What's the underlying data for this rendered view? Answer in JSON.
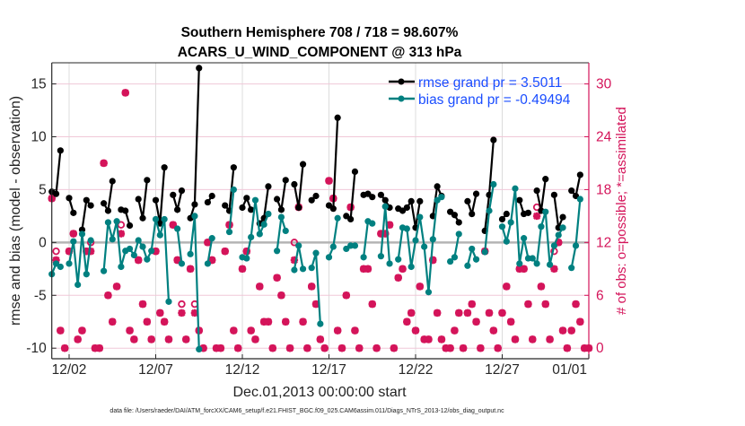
{
  "chart_data": {
    "type": "line",
    "title": [
      "Southern Hemisphere 708 / 718 = 98.607%",
      "ACARS_U_WIND_COMPONENT @ 313 hPa"
    ],
    "xlabel": "Dec.01,2013 00:00:00 start",
    "ylabel": "rmse and bias (model - observation)",
    "ylabel_right": "# of obs: o=possible; *=assimilated",
    "footer": "data file: /Users/raeder/DAI/ATM_forcXX/CAM6_setup/f.e21.FHIST_BGC.f09_025.CAM6assim.011/Diags_NTrS_2013-12/obs_diag_output.nc",
    "x_unit": "days since Dec.01,2013 00:00:00, 6-hourly",
    "x_step_days": 0.25,
    "xlim": [
      0,
      31
    ],
    "ylim": [
      -11,
      17
    ],
    "ylim_right": [
      -1.2,
      32.4
    ],
    "x_ticks": [
      {
        "value": 1,
        "label": "12/02"
      },
      {
        "value": 6,
        "label": "12/07"
      },
      {
        "value": 11,
        "label": "12/12"
      },
      {
        "value": 16,
        "label": "12/17"
      },
      {
        "value": 21,
        "label": "12/22"
      },
      {
        "value": 26,
        "label": "12/27"
      },
      {
        "value": 31,
        "label": "01/01"
      }
    ],
    "y_ticks": [
      -10,
      -5,
      0,
      5,
      10,
      15
    ],
    "y_ticks_right": [
      0,
      6,
      12,
      18,
      24,
      30
    ],
    "grid": true,
    "legend_position": "top-right",
    "colors": {
      "rmse": "#000000",
      "bias": "#008080",
      "obs": "#d4145a",
      "legend_text": "#1a4dff",
      "zero_line": "#b4b4b4"
    },
    "series": [
      {
        "name": "rmse grand pr = 3.5011",
        "key": "rmse",
        "values": [
          4.8,
          4.6,
          8.7,
          null,
          4.2,
          2.8,
          null,
          1.2,
          4.0,
          3.5,
          null,
          null,
          3.7,
          3.0,
          5.8,
          null,
          3.1,
          3.0,
          1.6,
          null,
          4.1,
          2.3,
          5.9,
          null,
          4.0,
          1.8,
          7.1,
          null,
          4.5,
          3.1,
          4.9,
          null,
          2.3,
          3.6,
          16.5,
          null,
          3.8,
          4.4,
          null,
          null,
          3.5,
          3.0,
          7.1,
          null,
          3.3,
          4.2,
          3.1,
          null,
          1.8,
          2.3,
          5.3,
          null,
          4.1,
          3.1,
          5.9,
          null,
          5.5,
          3.3,
          7.4,
          null,
          4.0,
          4.4,
          null,
          null,
          3.5,
          3.2,
          11.8,
          null,
          2.5,
          2.2,
          6.7,
          null,
          4.5,
          4.6,
          4.3,
          null,
          4.5,
          4.0,
          3.3,
          null,
          3.2,
          3.0,
          3.3,
          3.9,
          1.4,
          3.9,
          null,
          null,
          2.5,
          5.3,
          4.4,
          null,
          2.9,
          2.6,
          1.9,
          null,
          3.9,
          2.7,
          4.6,
          null,
          1.1,
          4.5,
          9.7,
          null,
          2.2,
          2.7,
          null,
          null,
          4.0,
          2.7,
          2.8,
          null,
          4.9,
          3.0,
          6.0,
          null,
          4.5,
          1.4,
          2.4,
          null,
          4.9,
          4.4,
          6.4,
          null,
          null
        ]
      },
      {
        "name": "bias grand pr = -0.49494",
        "key": "bias",
        "values": [
          -3.0,
          -2.0,
          -2.3,
          null,
          -2.0,
          0.1,
          -4.0,
          0.8,
          -3.0,
          0.2,
          null,
          null,
          -2.7,
          1.9,
          0.3,
          2.0,
          -2.3,
          -0.8,
          -0.6,
          -1.2,
          0.2,
          -0.4,
          -1.6,
          -0.8,
          2.2,
          0.7,
          2.2,
          -5.6,
          null,
          1.3,
          -2.0,
          null,
          -1.1,
          2.5,
          -10.1,
          null,
          -2.0,
          0.4,
          null,
          null,
          null,
          1.0,
          5.0,
          null,
          -1.4,
          -1.5,
          0.5,
          4.0,
          0.8,
          1.7,
          2.7,
          null,
          -0.8,
          2.4,
          1.1,
          null,
          -2.6,
          -0.3,
          -2.5,
          null,
          -2.4,
          -1.0,
          -7.7,
          null,
          -1.4,
          -0.4,
          2.3,
          null,
          -0.6,
          -0.3,
          -0.3,
          null,
          -1.4,
          2.0,
          1.8,
          null,
          -1.3,
          3.4,
          -2.0,
          null,
          -1.6,
          1.4,
          1.3,
          -2.3,
          0.2,
          2.4,
          -0.4,
          -4.7,
          0.3,
          4.0,
          4.3,
          null,
          -1.8,
          -1.4,
          0.8,
          null,
          -2.2,
          -0.6,
          -1.6,
          null,
          -0.9,
          3.0,
          5.5,
          null,
          1.5,
          0.1,
          1.9,
          5.1,
          -2.0,
          0.4,
          -1.5,
          -1.5,
          -2.0,
          1.5,
          2.9,
          -2.1,
          -0.3,
          0.7,
          1.4,
          null,
          -2.4,
          -0.3,
          4.1,
          null,
          null
        ]
      }
    ],
    "obs_possible": [
      17,
      11,
      2,
      0,
      11,
      13,
      1,
      2,
      11,
      12,
      0,
      0,
      21,
      6,
      3,
      7,
      14,
      29,
      2,
      1,
      10,
      5,
      3,
      1,
      11,
      4,
      3,
      1,
      14,
      10,
      5,
      1,
      9,
      5,
      2,
      0,
      12,
      10,
      0,
      0,
      11,
      14,
      2,
      0,
      9,
      11,
      2,
      1,
      7,
      3,
      3,
      0,
      8,
      6,
      3,
      0,
      12,
      16,
      3,
      0,
      7,
      5,
      1,
      0,
      19,
      17,
      2,
      0,
      6,
      16,
      2,
      0,
      9,
      9,
      5,
      0,
      13,
      13,
      14,
      0,
      8,
      9,
      3,
      4,
      2,
      7,
      1,
      1,
      10,
      4,
      1,
      0,
      0,
      2,
      4,
      0,
      4,
      5,
      3,
      0,
      11,
      4,
      2,
      0,
      4,
      7,
      3,
      1,
      9,
      9,
      5,
      1,
      16,
      7,
      5,
      1,
      11,
      12,
      2,
      0,
      2,
      5,
      3,
      0,
      0
    ],
    "obs_assimilated": [
      17,
      10,
      2,
      0,
      11,
      13,
      1,
      2,
      11,
      11,
      0,
      0,
      21,
      6,
      3,
      7,
      13,
      29,
      2,
      1,
      10,
      5,
      3,
      1,
      11,
      4,
      3,
      1,
      14,
      10,
      4,
      1,
      9,
      4,
      2,
      0,
      12,
      10,
      0,
      0,
      11,
      14,
      2,
      0,
      9,
      11,
      2,
      1,
      7,
      3,
      3,
      0,
      8,
      6,
      3,
      0,
      10,
      16,
      3,
      0,
      7,
      5,
      1,
      0,
      19,
      17,
      2,
      0,
      6,
      16,
      2,
      0,
      9,
      9,
      5,
      0,
      13,
      13,
      14,
      0,
      8,
      9,
      3,
      4,
      2,
      7,
      1,
      1,
      10,
      4,
      1,
      0,
      0,
      2,
      4,
      0,
      4,
      5,
      3,
      0,
      11,
      4,
      2,
      0,
      4,
      7,
      3,
      1,
      9,
      9,
      5,
      1,
      15,
      7,
      5,
      1,
      9,
      12,
      2,
      0,
      2,
      5,
      3,
      0,
      0
    ]
  }
}
